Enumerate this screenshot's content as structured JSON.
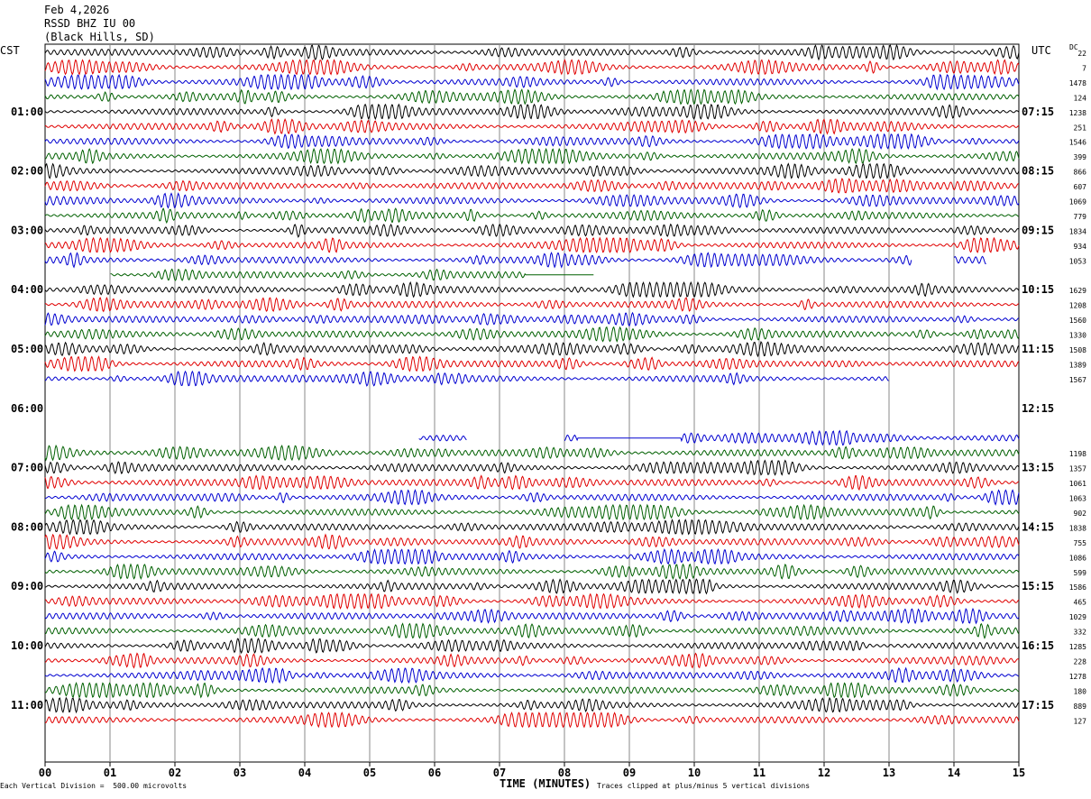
{
  "header": {
    "date": "Feb 4,2026",
    "station": "RSSD BHZ IU 00",
    "location": "(Black Hills, SD)"
  },
  "labels": {
    "left_zone": "CST",
    "right_zone": "UTC",
    "dc": "DC",
    "footer_left": "Each Vertical Division =  500.00 microvolts",
    "footer_center": "TIME (MINUTES)",
    "footer_right": "Traces clipped at plus/minus 5 vertical divisions"
  },
  "chart_data": {
    "type": "line",
    "title": "",
    "xlabel": "TIME (MINUTES)",
    "xlim": [
      0,
      15
    ],
    "x_ticks": [
      "00",
      "01",
      "02",
      "03",
      "04",
      "05",
      "06",
      "07",
      "08",
      "09",
      "10",
      "11",
      "12",
      "13",
      "14",
      "15"
    ],
    "hour_labels_left": [
      "01:00",
      "02:00",
      "03:00",
      "04:00",
      "05:00",
      "06:00",
      "07:00",
      "08:00",
      "09:00",
      "10:00",
      "11:00"
    ],
    "hour_labels_right": [
      "07:15",
      "08:15",
      "09:15",
      "10:15",
      "11:15",
      "12:15",
      "13:15",
      "14:15",
      "15:15",
      "16:15",
      "17:15"
    ],
    "trace_colors": [
      "#000000",
      "#e00000",
      "#0000d0",
      "#006000"
    ],
    "dc_values": [
      "22",
      "7",
      "1478",
      "124",
      "1238",
      "251",
      "1546",
      "399",
      "866",
      "607",
      "1069",
      "779",
      "1834",
      "934",
      "1053",
      "",
      "1629",
      "1208",
      "1560",
      "1330",
      "1508",
      "1389",
      "1567",
      "",
      "",
      "",
      "",
      "1198",
      "1357",
      "1061",
      "1063",
      "902",
      "1838",
      "755",
      "1086",
      "599",
      "1586",
      "465",
      "1029",
      "332",
      "1285",
      "228",
      "1278",
      "180",
      "889",
      "127"
    ],
    "gaps_in_minutes": [
      {
        "trace": 14,
        "from": 13.35,
        "to": 14.0
      },
      {
        "trace": 14,
        "from": 14.5,
        "to": 15.0
      },
      {
        "trace": 15,
        "from": 0.0,
        "to": 1.0
      },
      {
        "trace": 15,
        "from": 8.45,
        "to": 15.0
      },
      {
        "trace": 21,
        "from": 0.0,
        "to": 0.0
      },
      {
        "trace": 22,
        "from": 13.0,
        "to": 15.0
      },
      {
        "trace": 26,
        "from": 0.0,
        "to": 5.75
      },
      {
        "trace": 26,
        "from": 6.5,
        "to": 8.0
      }
    ],
    "flat_segments_in_minutes": [
      {
        "trace": 15,
        "from": 7.4,
        "to": 8.45
      },
      {
        "trace": 26,
        "from": 8.2,
        "to": 9.8
      }
    ],
    "missing_traces": [
      23,
      24,
      25
    ]
  }
}
